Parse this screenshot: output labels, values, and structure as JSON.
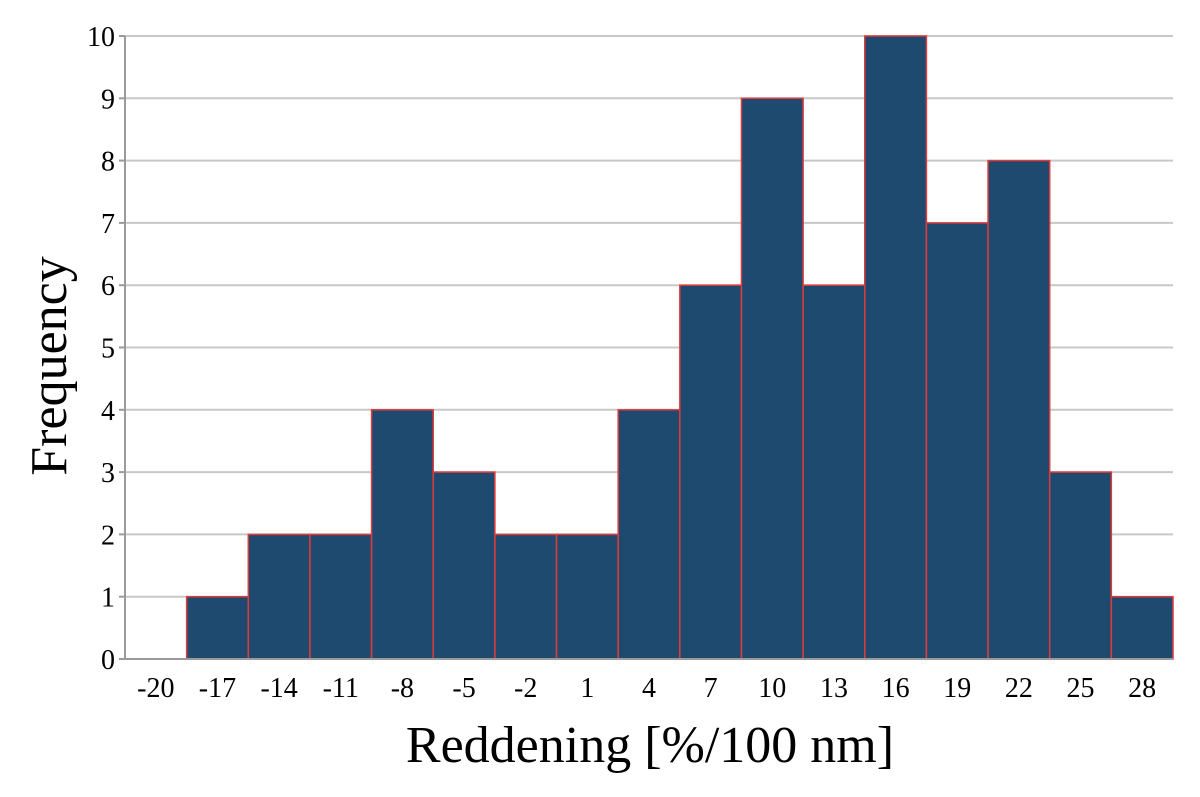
{
  "chart_data": {
    "type": "bar",
    "title": "",
    "xlabel": "Reddening [%/100 nm]",
    "ylabel": "Frequency",
    "categories": [
      "-20",
      "-17",
      "-14",
      "-11",
      "-8",
      "-5",
      "-2",
      "1",
      "4",
      "7",
      "10",
      "13",
      "16",
      "19",
      "22",
      "25",
      "28"
    ],
    "values": [
      0,
      1,
      2,
      2,
      4,
      3,
      2,
      2,
      4,
      6,
      9,
      6,
      10,
      7,
      8,
      3,
      1
    ],
    "ylim": [
      0,
      10
    ],
    "yticks": [
      "0",
      "1",
      "2",
      "3",
      "4",
      "5",
      "6",
      "7",
      "8",
      "9",
      "10"
    ],
    "grid": true,
    "legend": "none",
    "colors": {
      "bar_fill": "#1f4a70",
      "bar_edge": "#e03a3a",
      "grid": "#c8c8c8",
      "axis": "#9a9a9a"
    }
  }
}
